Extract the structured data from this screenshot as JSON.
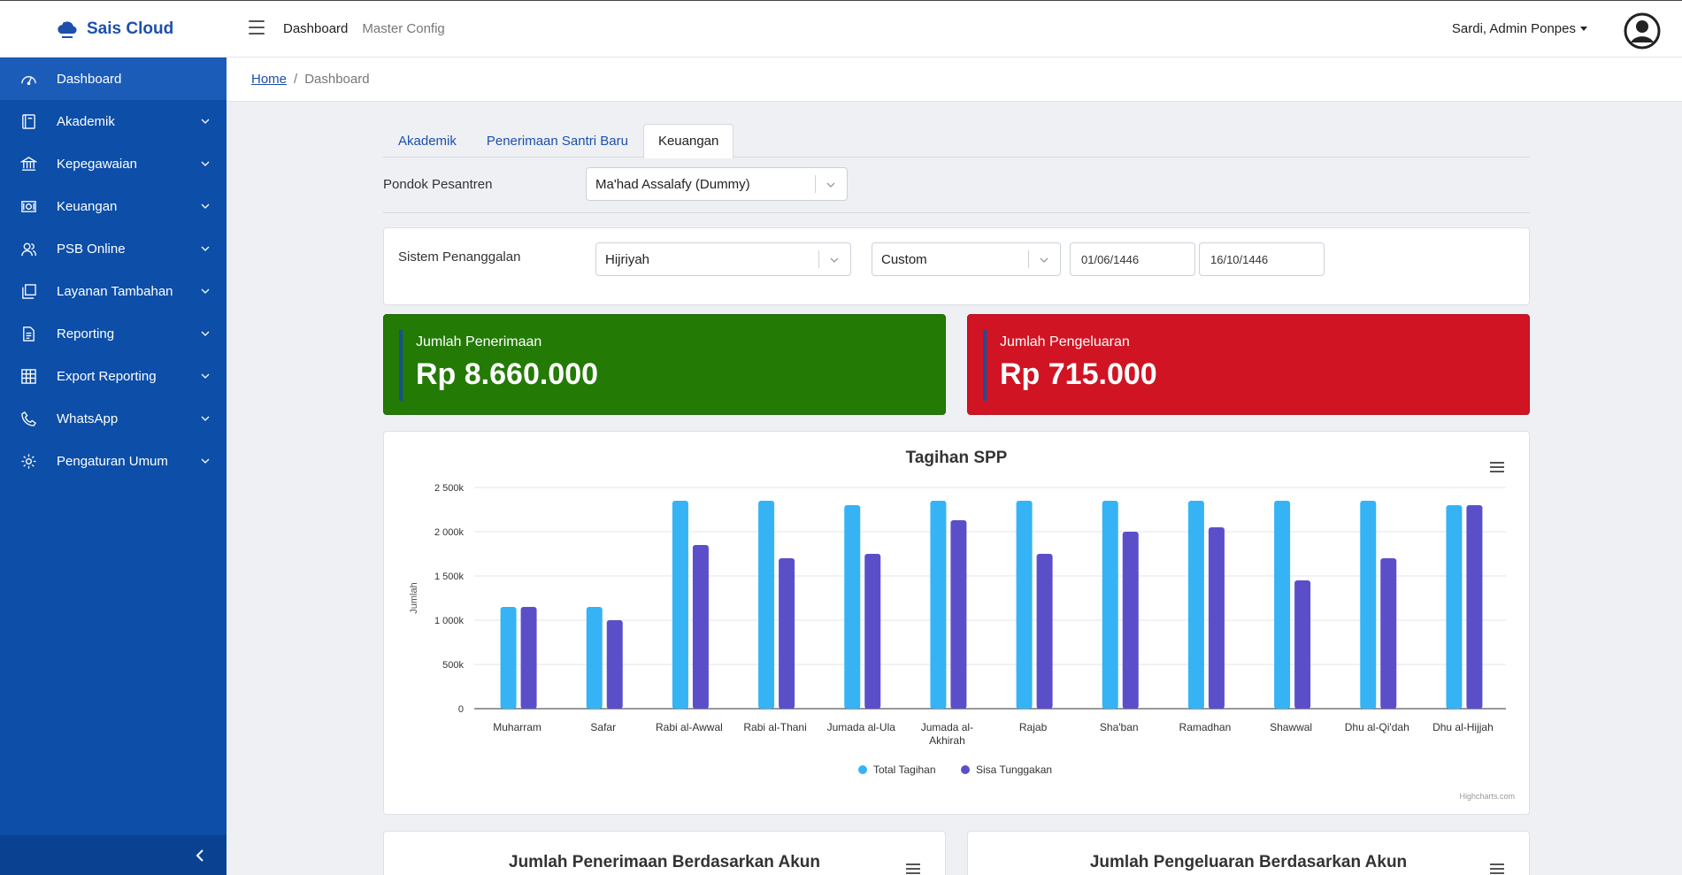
{
  "brand": {
    "name": "Sais Cloud",
    "color": "#1d4fad"
  },
  "topnav": {
    "items": [
      "Dashboard",
      "Master Config"
    ]
  },
  "user": {
    "name": "Sardi, Admin Ponpes"
  },
  "sidebar": {
    "items": [
      {
        "label": "Dashboard",
        "icon": "speedometer-icon"
      },
      {
        "label": "Akademik",
        "icon": "book-icon"
      },
      {
        "label": "Kepegawaian",
        "icon": "bank-icon"
      },
      {
        "label": "Keuangan",
        "icon": "cash-icon"
      },
      {
        "label": "PSB Online",
        "icon": "users-icon"
      },
      {
        "label": "Layanan Tambahan",
        "icon": "copy-icon"
      },
      {
        "label": "Reporting",
        "icon": "document-icon"
      },
      {
        "label": "Export Reporting",
        "icon": "table-icon"
      },
      {
        "label": "WhatsApp",
        "icon": "phone-icon"
      },
      {
        "label": "Pengaturan Umum",
        "icon": "gear-icon"
      }
    ]
  },
  "breadcrumb": {
    "home": "Home",
    "separator": "/",
    "current": "Dashboard"
  },
  "tabs": [
    "Akademik",
    "Penerimaan Santri Baru",
    "Keuangan"
  ],
  "pondok": {
    "label": "Pondok Pesantren",
    "value": "Ma'had Assalafy (Dummy)"
  },
  "filter": {
    "label": "Sistem Penanggalan",
    "calendar": "Hijriyah",
    "range": "Custom",
    "date_from": "01/06/1446",
    "date_to": "16/10/1446"
  },
  "stats": {
    "income": {
      "label": "Jumlah Penerimaan",
      "value": "Rp 8.660.000",
      "color": "#237a05"
    },
    "expense": {
      "label": "Jumlah Pengeluaran",
      "value": "Rp 715.000",
      "color": "#d01423"
    }
  },
  "chart_data": {
    "type": "bar",
    "title": "Tagihan SPP",
    "ylabel": "Jumlah",
    "xlabel": "",
    "ylim": [
      0,
      2500000
    ],
    "yticks": [
      0,
      500000,
      1000000,
      1500000,
      2000000,
      2500000
    ],
    "ytick_labels": [
      "0",
      "500k",
      "1 000k",
      "1 500k",
      "2 000k",
      "2 500k"
    ],
    "categories": [
      "Muharram",
      "Safar",
      "Rabi al-Awwal",
      "Rabi al-Thani",
      "Jumada al-Ula",
      "Jumada al-Akhirah",
      "Rajab",
      "Sha'ban",
      "Ramadhan",
      "Shawwal",
      "Dhu al-Qi'dah",
      "Dhu al-Hijjah"
    ],
    "series": [
      {
        "name": "Total Tagihan",
        "color": "#35b3f5",
        "values": [
          1150000,
          1150000,
          2350000,
          2350000,
          2300000,
          2350000,
          2350000,
          2350000,
          2350000,
          2350000,
          2350000,
          2300000
        ]
      },
      {
        "name": "Sisa Tunggakan",
        "color": "#5b4fc9",
        "values": [
          1150000,
          1000000,
          1850000,
          1700000,
          1750000,
          2130000,
          1750000,
          2000000,
          2050000,
          1450000,
          1700000,
          2300000
        ]
      }
    ],
    "legend": "bottom-center",
    "grid": true,
    "credits": "Highcharts.com"
  },
  "bottom_cards": {
    "income_by_account": "Jumlah Penerimaan Berdasarkan Akun",
    "expense_by_account": "Jumlah Pengeluaran Berdasarkan Akun"
  }
}
